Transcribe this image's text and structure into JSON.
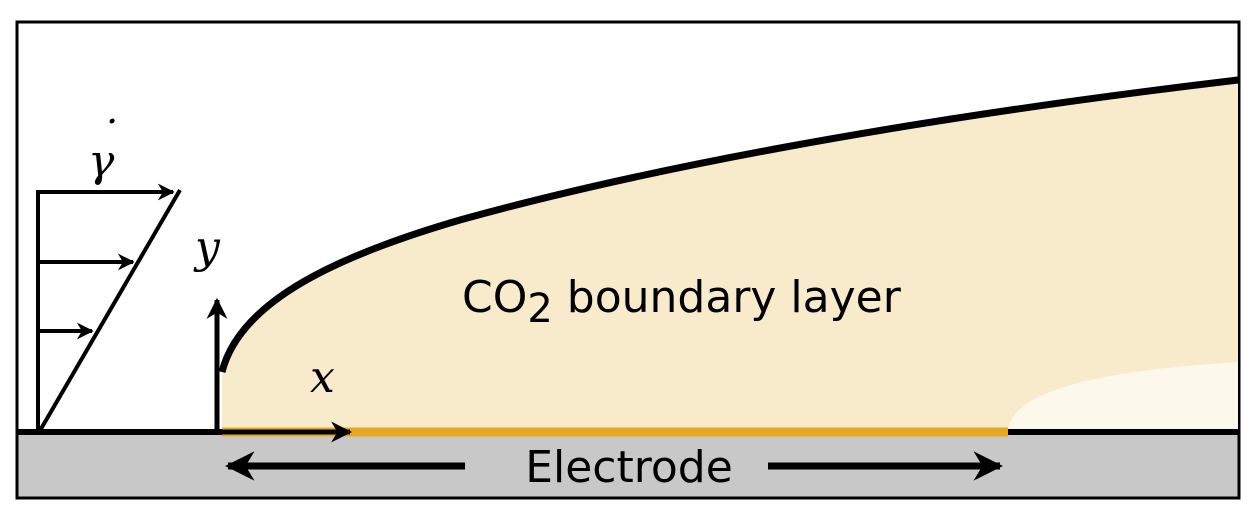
{
  "labels": {
    "shear_rate_symbol": "γ",
    "shear_rate_dot": "˙",
    "y_axis": "y",
    "x_axis": "x",
    "boundary_layer_main": "CO",
    "boundary_layer_sub": "2",
    "boundary_layer_rest": " boundary layer",
    "electrode": "Electrode"
  },
  "colors": {
    "boundary_layer_fill": "#f8ebcb",
    "downstream_layer_fill": "#fdf8ec",
    "electrode": "#e6a823",
    "substrate": "#c8c8c8",
    "outline": "#000000"
  }
}
